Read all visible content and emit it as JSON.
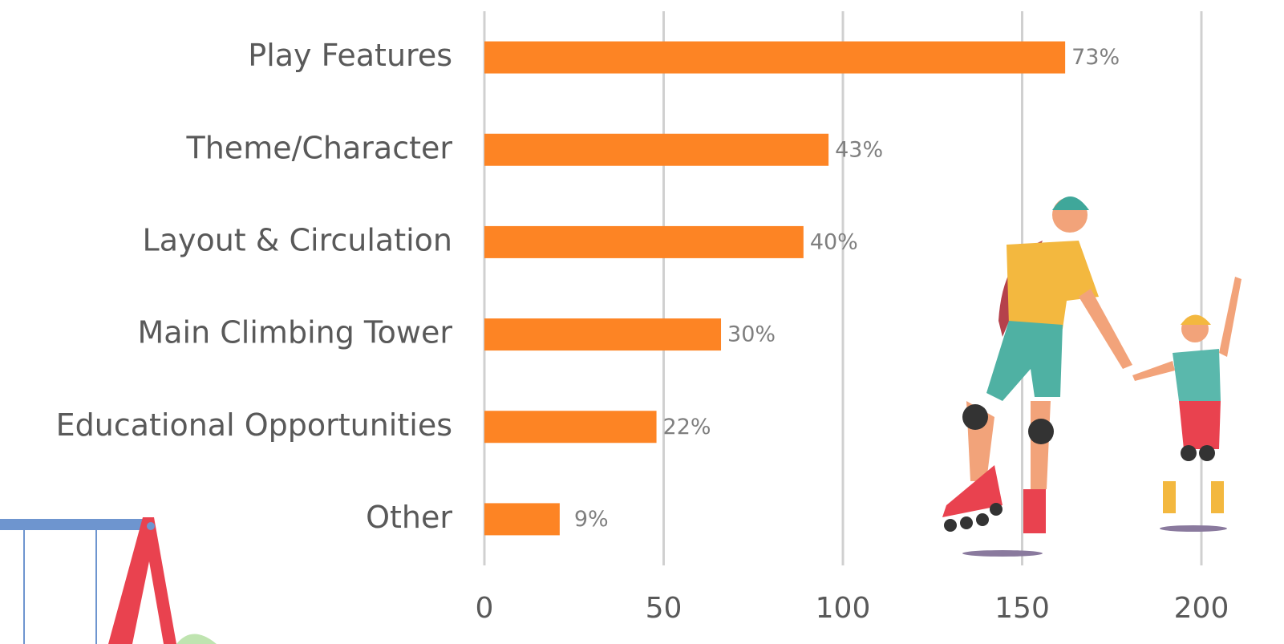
{
  "chart_data": {
    "type": "bar",
    "orientation": "horizontal",
    "categories": [
      "Play Features",
      "Theme/Character",
      "Layout & Circulation",
      "Main Climbing Tower",
      "Educational Opportunities",
      "Other"
    ],
    "values": [
      162,
      96,
      89,
      66,
      48,
      21
    ],
    "percent_labels": [
      "73%",
      "43%",
      "40%",
      "30%",
      "22%",
      "9%"
    ],
    "color": "#fd8424",
    "xlim": [
      0,
      200
    ],
    "xticks": [
      0,
      50,
      100,
      150,
      200
    ],
    "grid": true
  }
}
